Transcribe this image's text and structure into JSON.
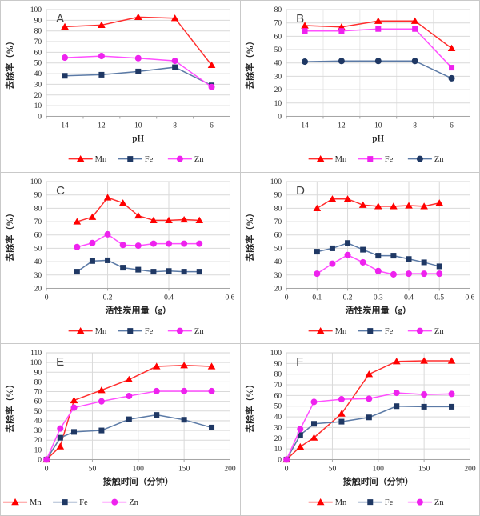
{
  "figure": {
    "layout": "2x3-grid",
    "grid_border_color": "#c9c9c9",
    "background": "#ffffff"
  },
  "colors": {
    "mn_marker": "#ff0000",
    "mn_line": "#ff2e2e",
    "navy_marker": "#1f3864",
    "steel_line": "#5b7aa6",
    "magenta_marker": "#ee22ee",
    "magenta_line": "#ff4fff",
    "gridline": "#d9d9d9",
    "boundary_gridline": "#e8e8e8",
    "plot_border": "#d4d4d4",
    "axis_line": "#a6a6a6",
    "tick_text": "#262626",
    "panel_letter": "#404040"
  },
  "chart_data": [
    {
      "type": "line",
      "panel": "A",
      "title": "",
      "xlabel": "pH",
      "ylabel": "去除率（%）",
      "x_type": "category",
      "categories": [
        "14",
        "12",
        "10",
        "8",
        "6"
      ],
      "ylim": [
        0,
        100
      ],
      "ystep": 10,
      "boundary_grid": false,
      "vgrid": [],
      "legend_align": "center",
      "legend_position": "bottom",
      "series": [
        {
          "name": "Mn",
          "marker": "triangle",
          "marker_color": "#ff0000",
          "line_color": "#ff2e2e",
          "values": [
            84,
            85.5,
            93,
            92,
            48
          ]
        },
        {
          "name": "Fe",
          "marker": "square",
          "marker_color": "#1f3864",
          "line_color": "#5b7aa6",
          "values": [
            38,
            39,
            42,
            46,
            29
          ]
        },
        {
          "name": "Zn",
          "marker": "circle",
          "marker_color": "#ee22ee",
          "line_color": "#ff4fff",
          "values": [
            55,
            56.5,
            54.5,
            52,
            27.5
          ]
        }
      ]
    },
    {
      "type": "line",
      "panel": "B",
      "title": "",
      "xlabel": "pH",
      "ylabel": "去除率（%）",
      "x_type": "category",
      "categories": [
        "14",
        "12",
        "10",
        "8",
        "6"
      ],
      "ylim": [
        0,
        80
      ],
      "ystep": 10,
      "boundary_grid": true,
      "vgrid": [],
      "legend_align": "center",
      "legend_position": "bottom",
      "series": [
        {
          "name": "Mn",
          "marker": "triangle",
          "marker_color": "#ff0000",
          "line_color": "#ff2e2e",
          "values": [
            68,
            67,
            71.5,
            71.5,
            51
          ]
        },
        {
          "name": "Fe",
          "marker": "square",
          "marker_color": "#ee22ee",
          "line_color": "#ff4fff",
          "values": [
            64,
            64,
            65.5,
            65.5,
            36.5
          ]
        },
        {
          "name": "Zn",
          "marker": "circle",
          "marker_color": "#1f3864",
          "line_color": "#5b7aa6",
          "values": [
            41,
            41.5,
            41.5,
            41.5,
            28.5
          ]
        }
      ]
    },
    {
      "type": "line",
      "panel": "C",
      "title": "",
      "xlabel": "活性炭用量（g）",
      "ylabel": "去除率（%）",
      "x_type": "numeric",
      "xlim": [
        0,
        0.6
      ],
      "xticks": [
        {
          "v": 0,
          "label": "0"
        },
        {
          "v": 0.2,
          "label": "0.2"
        },
        {
          "v": 0.4,
          "label": "0.4"
        },
        {
          "v": 0.6,
          "label": "0.6"
        }
      ],
      "vgrid": [
        0.2,
        0.4
      ],
      "x": [
        0.1,
        0.15,
        0.2,
        0.25,
        0.3,
        0.35,
        0.4,
        0.45,
        0.5
      ],
      "ylim": [
        20,
        100
      ],
      "ystep": 10,
      "legend_align": "center",
      "legend_position": "bottom",
      "series": [
        {
          "name": "Mn",
          "marker": "triangle",
          "marker_color": "#ff0000",
          "line_color": "#ff2e2e",
          "values": [
            70,
            73.5,
            88,
            84,
            74.5,
            71,
            71,
            71.5,
            71
          ]
        },
        {
          "name": "Fe",
          "marker": "square",
          "marker_color": "#1f3864",
          "line_color": "#5b7aa6",
          "values": [
            32.5,
            40.5,
            41,
            35.5,
            34,
            32.5,
            33,
            32.5,
            32.5
          ]
        },
        {
          "name": "Zn",
          "marker": "circle",
          "marker_color": "#ee22ee",
          "line_color": "#ff4fff",
          "values": [
            51,
            54,
            60.5,
            52.5,
            52,
            53.5,
            53.5,
            53.5,
            53.5
          ]
        }
      ]
    },
    {
      "type": "line",
      "panel": "D",
      "title": "",
      "xlabel": "活性炭用量（g）",
      "ylabel": "去除率（%）",
      "x_type": "numeric",
      "xlim": [
        0,
        0.6
      ],
      "xticks": [
        {
          "v": 0,
          "label": "0"
        },
        {
          "v": 0.1,
          "label": "0.1"
        },
        {
          "v": 0.2,
          "label": "0.2"
        },
        {
          "v": 0.3,
          "label": "0.3"
        },
        {
          "v": 0.4,
          "label": "0.4"
        },
        {
          "v": 0.5,
          "label": "0.5"
        },
        {
          "v": 0.6,
          "label": "0.6"
        }
      ],
      "vgrid": [
        0.1,
        0.2,
        0.3,
        0.4,
        0.5
      ],
      "x": [
        0.1,
        0.15,
        0.2,
        0.25,
        0.3,
        0.35,
        0.4,
        0.45,
        0.5
      ],
      "ylim": [
        20,
        100
      ],
      "ystep": 10,
      "legend_align": "center",
      "legend_position": "bottom",
      "series": [
        {
          "name": "Mn",
          "marker": "triangle",
          "marker_color": "#ff0000",
          "line_color": "#ff2e2e",
          "values": [
            80,
            87,
            87,
            82.5,
            81.5,
            81.5,
            82,
            81.5,
            84
          ]
        },
        {
          "name": "Fe",
          "marker": "square",
          "marker_color": "#1f3864",
          "line_color": "#5b7aa6",
          "values": [
            47.5,
            50,
            54,
            49,
            44.5,
            44.5,
            42,
            39.5,
            36.5
          ]
        },
        {
          "name": "Zn",
          "marker": "circle",
          "marker_color": "#ee22ee",
          "line_color": "#ff4fff",
          "values": [
            31,
            38.5,
            45,
            39.5,
            33,
            30.5,
            31,
            31,
            31
          ]
        }
      ]
    },
    {
      "type": "line",
      "panel": "E",
      "title": "",
      "xlabel": "接触时间（分钟）",
      "ylabel": "去除率（%）",
      "x_type": "numeric",
      "xlim": [
        0,
        200
      ],
      "xticks": [
        {
          "v": 0,
          "label": "0"
        },
        {
          "v": 50,
          "label": "50"
        },
        {
          "v": 100,
          "label": "100"
        },
        {
          "v": 150,
          "label": "150"
        },
        {
          "v": 200,
          "label": "200"
        }
      ],
      "vgrid": [
        50,
        100,
        150
      ],
      "x": [
        0,
        15,
        30,
        60,
        90,
        120,
        150,
        180
      ],
      "ylim": [
        0,
        110
      ],
      "ystep": 10,
      "legend_align": "left",
      "legend_position": "bottom",
      "series": [
        {
          "name": "Mn",
          "marker": "triangle",
          "marker_color": "#ff0000",
          "line_color": "#ff2e2e",
          "values": [
            0,
            13.5,
            61,
            71.5,
            82.5,
            96,
            97,
            96
          ]
        },
        {
          "name": "Fe",
          "marker": "square",
          "marker_color": "#1f3864",
          "line_color": "#5b7aa6",
          "values": [
            0,
            22.5,
            28.5,
            30,
            41.5,
            46,
            41,
            33
          ]
        },
        {
          "name": "Zn",
          "marker": "circle",
          "marker_color": "#ee22ee",
          "line_color": "#ff4fff",
          "values": [
            0,
            32,
            53.5,
            60,
            65.5,
            70.5,
            70.5,
            70.5
          ]
        }
      ]
    },
    {
      "type": "line",
      "panel": "F",
      "title": "",
      "xlabel": "接触时间（分钟）",
      "ylabel": "去除率（%）",
      "x_type": "numeric",
      "xlim": [
        0,
        200
      ],
      "xticks": [
        {
          "v": 0,
          "label": "0"
        },
        {
          "v": 50,
          "label": "50"
        },
        {
          "v": 100,
          "label": "100"
        },
        {
          "v": 150,
          "label": "150"
        },
        {
          "v": 200,
          "label": "200"
        }
      ],
      "vgrid": [
        50,
        100,
        150
      ],
      "x": [
        0,
        15,
        30,
        60,
        90,
        120,
        150,
        180
      ],
      "ylim": [
        0,
        100
      ],
      "ystep": 10,
      "legend_align": "center",
      "legend_position": "bottom",
      "series": [
        {
          "name": "Mn",
          "marker": "triangle",
          "marker_color": "#ff0000",
          "line_color": "#ff2e2e",
          "values": [
            0,
            12,
            20.5,
            43,
            80,
            92,
            92.5,
            92.5
          ]
        },
        {
          "name": "Fe",
          "marker": "square",
          "marker_color": "#1f3864",
          "line_color": "#5b7aa6",
          "values": [
            0,
            23,
            33.5,
            35.5,
            39.5,
            50,
            49.5,
            49.5
          ]
        },
        {
          "name": "Zn",
          "marker": "circle",
          "marker_color": "#ee22ee",
          "line_color": "#ff4fff",
          "values": [
            0,
            28.5,
            54,
            56.5,
            57,
            62.5,
            61,
            61.5
          ]
        }
      ]
    }
  ]
}
